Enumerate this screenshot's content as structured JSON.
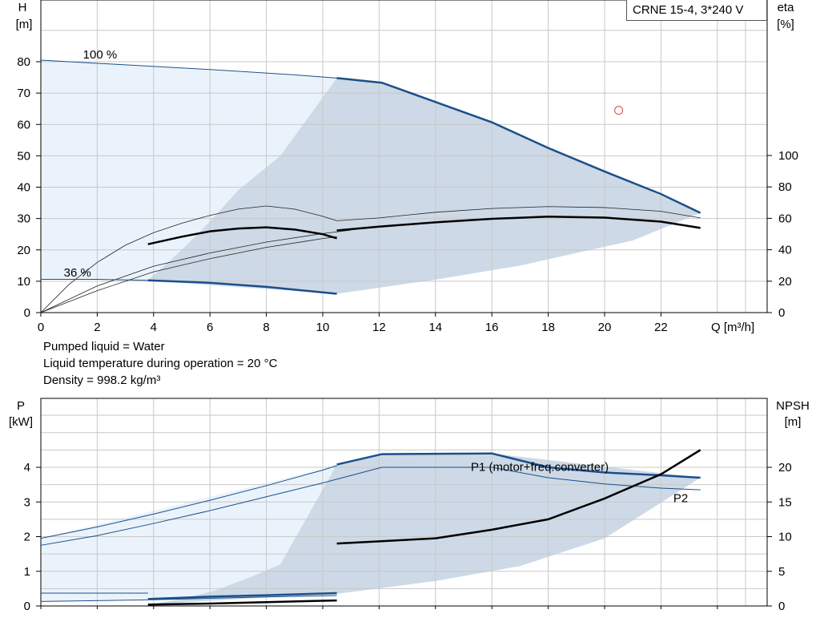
{
  "title": "CRNE 15-4, 3*240 V",
  "info_lines": [
    "Pumped liquid = Water",
    "Liquid temperature during operation = 20 °C",
    "Density = 998.2 kg/m³"
  ],
  "colors": {
    "curve_blue": "#1b4f8a",
    "area_light": "#eaf3fb",
    "area_mid": "#cdd9e6",
    "operating_point": "#e04040"
  },
  "chart_data": [
    {
      "type": "line",
      "name": "head-efficiency",
      "x_axis": {
        "label": "Q [m³/h]",
        "range": [
          0,
          25
        ],
        "ticks": [
          0,
          2,
          4,
          6,
          8,
          10,
          12,
          14,
          16,
          18,
          20,
          22
        ]
      },
      "y_axis_left": {
        "label_top": "H",
        "label_unit": "[m]",
        "range": [
          0,
          100
        ],
        "ticks": [
          0,
          10,
          20,
          30,
          40,
          50,
          60,
          70,
          80
        ]
      },
      "y_axis_right": {
        "label_top": "eta",
        "label_unit": "[%]",
        "range": [
          0,
          200
        ],
        "ticks": [
          0,
          20,
          40,
          60,
          80,
          100
        ]
      },
      "annotations": [
        {
          "text": "100 %",
          "x": 2.1,
          "y": 81.0
        },
        {
          "text": "36 %",
          "x": 1.3,
          "y": 11.5
        }
      ],
      "curves": {
        "head_100_thin": [
          [
            0,
            80.5
          ],
          [
            3,
            79.0
          ],
          [
            6,
            77.5
          ],
          [
            9,
            75.8
          ],
          [
            10.5,
            74.8
          ]
        ],
        "head_100_thick": [
          [
            10.5,
            74.8
          ],
          [
            12.1,
            73.3
          ],
          [
            16.0,
            60.7
          ],
          [
            18,
            52.5
          ],
          [
            20,
            45.0
          ],
          [
            22,
            37.8
          ],
          [
            23.4,
            31.8
          ]
        ],
        "head_36_thin": [
          [
            0,
            10.6
          ],
          [
            2,
            10.6
          ],
          [
            3.8,
            10.3
          ]
        ],
        "head_36_thick": [
          [
            3.8,
            10.3
          ],
          [
            6,
            9.5
          ],
          [
            8,
            8.2
          ],
          [
            10.5,
            6.0
          ]
        ],
        "eta_left_thin": [
          [
            0,
            0
          ],
          [
            1,
            9
          ],
          [
            2,
            16
          ],
          [
            3,
            21.5
          ],
          [
            4,
            25.5
          ],
          [
            5,
            28.5
          ],
          [
            6,
            31
          ],
          [
            7,
            33
          ],
          [
            8,
            34
          ],
          [
            9,
            33
          ],
          [
            10,
            30.7
          ],
          [
            10.5,
            29.3
          ]
        ],
        "eta_left_thick": [
          [
            3.8,
            21.8
          ],
          [
            5,
            24.2
          ],
          [
            6,
            25.9
          ],
          [
            7,
            26.8
          ],
          [
            8,
            27.2
          ],
          [
            9,
            26.5
          ],
          [
            10,
            25
          ],
          [
            10.5,
            23.7
          ]
        ],
        "eta_mid_thin": [
          [
            0,
            0
          ],
          [
            2,
            8.5
          ],
          [
            4,
            14.8
          ],
          [
            6,
            19
          ],
          [
            8,
            22.5
          ],
          [
            10,
            25.2
          ],
          [
            11,
            26.3
          ]
        ],
        "eta_low_thin": [
          [
            0,
            0
          ],
          [
            2,
            7
          ],
          [
            4,
            13
          ],
          [
            6,
            17.2
          ],
          [
            8,
            20.8
          ],
          [
            10,
            23.6
          ],
          [
            10.5,
            24.2
          ]
        ],
        "eta_right_thin": [
          [
            10.5,
            29.3
          ],
          [
            12,
            30.2
          ],
          [
            14,
            32
          ],
          [
            16,
            33.2
          ],
          [
            18,
            33.8
          ],
          [
            20,
            33.5
          ],
          [
            22,
            32.3
          ],
          [
            23.4,
            30.2
          ]
        ],
        "eta_right_thick": [
          [
            10.5,
            26.2
          ],
          [
            12,
            27.4
          ],
          [
            14,
            28.8
          ],
          [
            16,
            29.9
          ],
          [
            18,
            30.6
          ],
          [
            20,
            30.3
          ],
          [
            22,
            29
          ],
          [
            23.4,
            27
          ]
        ]
      },
      "shaded_region_light": [
        [
          0,
          80.5
        ],
        [
          10.5,
          74.8
        ],
        [
          10.5,
          6
        ],
        [
          6,
          8.5
        ],
        [
          3.8,
          10.3
        ],
        [
          0,
          10.6
        ]
      ],
      "shaded_region_mid": [
        [
          3.8,
          10.3
        ],
        [
          5,
          20
        ],
        [
          6,
          29
        ],
        [
          7,
          39
        ],
        [
          8.5,
          50
        ],
        [
          10.5,
          74.8
        ],
        [
          12.1,
          73.3
        ],
        [
          16,
          60.7
        ],
        [
          23.4,
          31.8
        ],
        [
          21,
          23
        ],
        [
          17,
          15
        ],
        [
          14,
          10.5
        ],
        [
          10.5,
          6
        ]
      ],
      "operating_point": {
        "x": 20.5,
        "y": 64.5
      }
    },
    {
      "type": "line",
      "name": "power-npsh",
      "x_axis": {
        "range": [
          0,
          25
        ]
      },
      "y_axis_left": {
        "label_top": "P",
        "label_unit": "[kW]",
        "range": [
          0,
          5
        ],
        "ticks": [
          0,
          1,
          2,
          3,
          4
        ]
      },
      "y_axis_right": {
        "label_top": "NPSH",
        "label_unit": "[m]",
        "range": [
          0,
          25
        ],
        "ticks": [
          0,
          5,
          10,
          15,
          20
        ]
      },
      "series_labels": [
        {
          "text": "P1 (motor+freq.converter)",
          "x": 17.7,
          "y": 3.9
        },
        {
          "text": "P2",
          "x": 22.7,
          "y": 3.0
        }
      ],
      "curves": {
        "p1_thin": [
          [
            0,
            1.95
          ],
          [
            2,
            2.28
          ],
          [
            4,
            2.65
          ],
          [
            6,
            3.05
          ],
          [
            8,
            3.47
          ],
          [
            10,
            3.92
          ],
          [
            10.5,
            4.05
          ]
        ],
        "p1_thick": [
          [
            10.5,
            4.08
          ],
          [
            12.1,
            4.38
          ],
          [
            16,
            4.4
          ],
          [
            18,
            4.0
          ],
          [
            20,
            3.85
          ],
          [
            22,
            3.77
          ],
          [
            23.4,
            3.7
          ]
        ],
        "p2_thin": [
          [
            0,
            1.75
          ],
          [
            2,
            2.03
          ],
          [
            4,
            2.38
          ],
          [
            6,
            2.75
          ],
          [
            8,
            3.15
          ],
          [
            10,
            3.55
          ],
          [
            12.1,
            4.0
          ],
          [
            16,
            4.0
          ],
          [
            18,
            3.7
          ],
          [
            20,
            3.52
          ],
          [
            22,
            3.4
          ],
          [
            23.4,
            3.35
          ]
        ],
        "p1_36_thin": [
          [
            0,
            0.37
          ],
          [
            3.8,
            0.37
          ]
        ],
        "p1_36_thick": [
          [
            3.8,
            0.2
          ],
          [
            6,
            0.27
          ],
          [
            8,
            0.31
          ],
          [
            10.5,
            0.37
          ]
        ],
        "p2_36_thin": [
          [
            0,
            0.13
          ],
          [
            4,
            0.18
          ],
          [
            8,
            0.26
          ],
          [
            10.5,
            0.3
          ]
        ],
        "p2_36_thick": [
          [
            3.8,
            0.04
          ],
          [
            6,
            0.07
          ],
          [
            8,
            0.11
          ],
          [
            10.5,
            0.16
          ]
        ],
        "npsh_thick": [
          [
            10.5,
            1.8
          ],
          [
            14,
            1.95
          ],
          [
            16,
            2.2
          ],
          [
            18,
            2.5
          ],
          [
            20,
            3.1
          ],
          [
            22,
            3.8
          ],
          [
            23.4,
            4.5
          ]
        ]
      },
      "shaded_region_light": [
        [
          0,
          1.95
        ],
        [
          10.5,
          4.05
        ],
        [
          10.5,
          0.3
        ],
        [
          3.8,
          0.2
        ],
        [
          0,
          0.13
        ]
      ],
      "shaded_region_mid": [
        [
          3.8,
          0.04
        ],
        [
          5,
          0.2
        ],
        [
          6.2,
          0.45
        ],
        [
          7.5,
          0.85
        ],
        [
          8.5,
          1.2
        ],
        [
          10.5,
          4.08
        ],
        [
          12.1,
          4.38
        ],
        [
          16,
          4.4
        ],
        [
          23.4,
          3.7
        ],
        [
          20,
          1.95
        ],
        [
          17,
          1.15
        ],
        [
          14,
          0.72
        ],
        [
          10.5,
          0.35
        ],
        [
          7,
          0.2
        ]
      ]
    }
  ]
}
